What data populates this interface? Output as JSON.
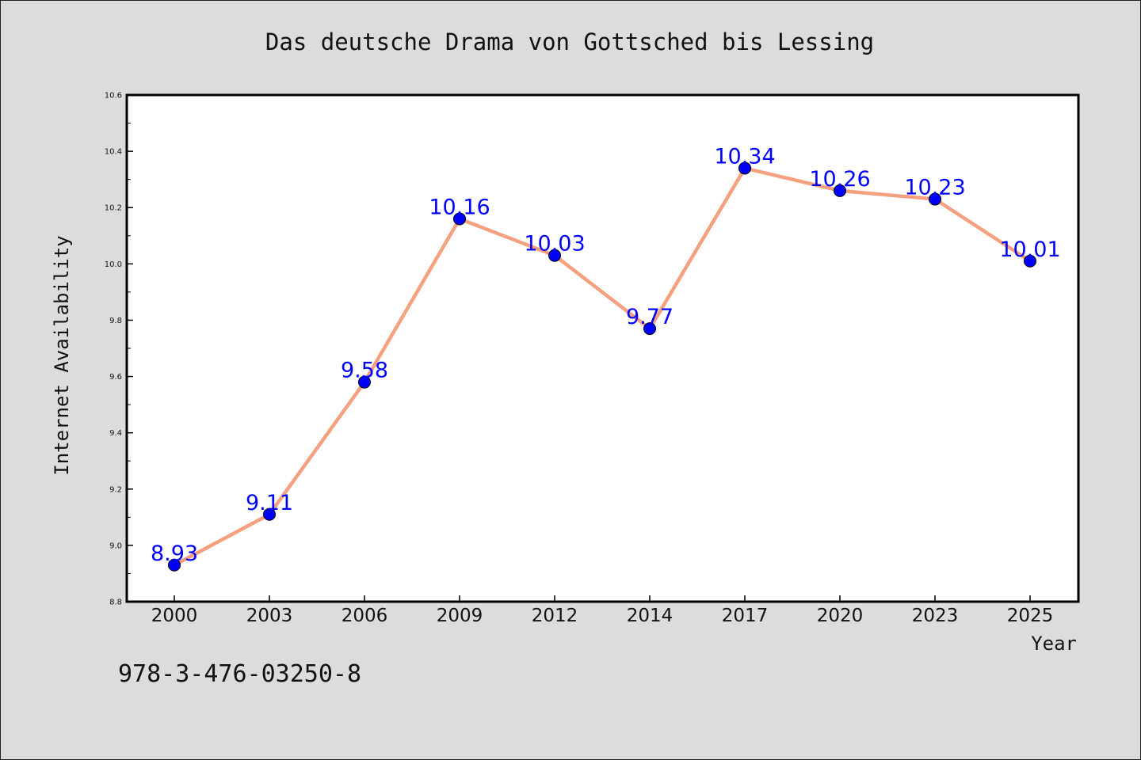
{
  "chart_data": {
    "type": "line",
    "title": "Das deutsche Drama von Gottsched bis Lessing",
    "xlabel": "Year",
    "ylabel": "Internet Availability",
    "categories": [
      "2000",
      "2003",
      "2006",
      "2009",
      "2012",
      "2014",
      "2017",
      "2020",
      "2023",
      "2025"
    ],
    "values": [
      8.93,
      9.11,
      9.58,
      10.16,
      10.03,
      9.77,
      10.34,
      10.26,
      10.23,
      10.01
    ],
    "data_labels": [
      "8.93",
      "9.11",
      "9.58",
      "10.16",
      "10.03",
      "9.77",
      "10.34",
      "10.26",
      "10.23",
      "10.01"
    ],
    "ylim": [
      8.8,
      10.6
    ],
    "yticks": [
      "8.8",
      "9.0",
      "9.2",
      "9.4",
      "9.6",
      "9.8",
      "10.0",
      "10.2",
      "10.4",
      "10.6"
    ],
    "grid": false,
    "colors": {
      "line": "#f5a07e",
      "marker": "#0000ff",
      "label": "#0000ff",
      "background": "#dcdcdc",
      "plot_background": "#ffffff"
    }
  },
  "footer": {
    "isbn": "978-3-476-03250-8"
  }
}
